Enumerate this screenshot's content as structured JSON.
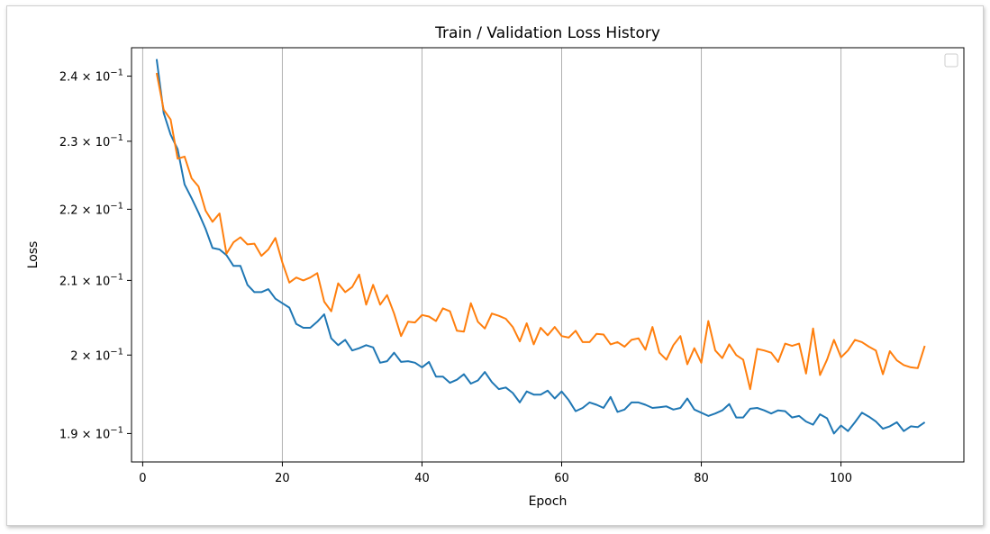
{
  "chart_data": {
    "type": "line",
    "title": "Train / Validation Loss History",
    "xlabel": "Epoch",
    "ylabel": "Loss",
    "xlim": [
      -1.6,
      117.6
    ],
    "ylim": [
      0.1865,
      0.2445
    ],
    "yscale": "log",
    "grid": "x-major-only",
    "legend": "top-right (empty)",
    "x_ticks": [
      0,
      20,
      40,
      60,
      80,
      100
    ],
    "x_tick_labels": [
      "0",
      "20",
      "40",
      "60",
      "80",
      "100"
    ],
    "y_ticks": [
      0.19,
      0.2,
      0.21,
      0.22,
      0.23,
      0.24
    ],
    "y_tick_labels": [
      {
        "mantissa": "1.9",
        "exp": "−1"
      },
      {
        "mantissa": "2",
        "exp": "−1"
      },
      {
        "mantissa": "2.1",
        "exp": "−1"
      },
      {
        "mantissa": "2.2",
        "exp": "−1"
      },
      {
        "mantissa": "2.3",
        "exp": "−1"
      },
      {
        "mantissa": "2.4",
        "exp": "−1"
      }
    ],
    "series": [
      {
        "color": "#1f77b4",
        "x": [
          2,
          3,
          4,
          5,
          6,
          7,
          8,
          9,
          10,
          11,
          12,
          13,
          14,
          15,
          16,
          17,
          18,
          19,
          20,
          21,
          22,
          23,
          24,
          25,
          26,
          27,
          28,
          29,
          30,
          31,
          32,
          33,
          34,
          35,
          36,
          37,
          38,
          39,
          40,
          41,
          42,
          43,
          44,
          45,
          46,
          47,
          48,
          49,
          50,
          51,
          52,
          53,
          54,
          55,
          56,
          57,
          58,
          59,
          60,
          61,
          62,
          63,
          64,
          65,
          66,
          67,
          68,
          69,
          70,
          71,
          72,
          73,
          74,
          75,
          76,
          77,
          78,
          79,
          80,
          81,
          82,
          83,
          84,
          85,
          86,
          87,
          88,
          89,
          90,
          91,
          92,
          93,
          94,
          95,
          96,
          97,
          98,
          99,
          100,
          101,
          102,
          103,
          104,
          105,
          106,
          107,
          108,
          109,
          110,
          111,
          112
        ],
        "values": [
          0.2427,
          0.2343,
          0.231,
          0.2288,
          0.2236,
          0.2216,
          0.2195,
          0.2172,
          0.2145,
          0.2143,
          0.2135,
          0.212,
          0.212,
          0.2094,
          0.2084,
          0.2084,
          0.2088,
          0.2075,
          0.2069,
          0.2063,
          0.2041,
          0.2036,
          0.2036,
          0.2044,
          0.2054,
          0.2022,
          0.2013,
          0.202,
          0.2006,
          0.2009,
          0.2013,
          0.201,
          0.199,
          0.1992,
          0.2003,
          0.1991,
          0.1992,
          0.199,
          0.1984,
          0.1991,
          0.1972,
          0.1972,
          0.1964,
          0.1968,
          0.1975,
          0.1963,
          0.1967,
          0.1978,
          0.1965,
          0.1956,
          0.1958,
          0.1951,
          0.1939,
          0.1953,
          0.1949,
          0.1949,
          0.1954,
          0.1944,
          0.1953,
          0.1942,
          0.1928,
          0.1932,
          0.1939,
          0.1936,
          0.1932,
          0.1946,
          0.1927,
          0.193,
          0.1939,
          0.1939,
          0.1936,
          0.1932,
          0.1933,
          0.1934,
          0.193,
          0.1932,
          0.1944,
          0.193,
          0.1926,
          0.1922,
          0.1925,
          0.1929,
          0.1937,
          0.192,
          0.192,
          0.1931,
          0.1932,
          0.1929,
          0.1925,
          0.1929,
          0.1928,
          0.192,
          0.1922,
          0.1915,
          0.1911,
          0.1924,
          0.1919,
          0.19,
          0.191,
          0.1903,
          0.1914,
          0.1926,
          0.1921,
          0.1915,
          0.1906,
          0.1909,
          0.1914,
          0.1903,
          0.1909,
          0.1908,
          0.1914
        ]
      },
      {
        "color": "#ff7f0e",
        "x": [
          2,
          3,
          4,
          5,
          6,
          7,
          8,
          9,
          10,
          11,
          12,
          13,
          14,
          15,
          16,
          17,
          18,
          19,
          20,
          21,
          22,
          23,
          24,
          25,
          26,
          27,
          28,
          29,
          30,
          31,
          32,
          33,
          34,
          35,
          36,
          37,
          38,
          39,
          40,
          41,
          42,
          43,
          44,
          45,
          46,
          47,
          48,
          49,
          50,
          51,
          52,
          53,
          54,
          55,
          56,
          57,
          58,
          59,
          60,
          61,
          62,
          63,
          64,
          65,
          66,
          67,
          68,
          69,
          70,
          71,
          72,
          73,
          74,
          75,
          76,
          77,
          78,
          79,
          80,
          81,
          82,
          83,
          84,
          85,
          86,
          87,
          88,
          89,
          90,
          91,
          92,
          93,
          94,
          95,
          96,
          97,
          98,
          99,
          100,
          101,
          102,
          103,
          104,
          105,
          106,
          107,
          108,
          109,
          110,
          111,
          112
        ],
        "values": [
          0.2405,
          0.2348,
          0.2333,
          0.2274,
          0.2277,
          0.2245,
          0.2233,
          0.2198,
          0.2182,
          0.2194,
          0.2137,
          0.2153,
          0.216,
          0.215,
          0.2151,
          0.2134,
          0.2143,
          0.2159,
          0.2125,
          0.2097,
          0.2104,
          0.21,
          0.2104,
          0.211,
          0.2071,
          0.2058,
          0.2096,
          0.2084,
          0.2091,
          0.2108,
          0.2067,
          0.2094,
          0.2067,
          0.208,
          0.2055,
          0.2025,
          0.2044,
          0.2043,
          0.2053,
          0.2051,
          0.2045,
          0.2062,
          0.2058,
          0.2032,
          0.2031,
          0.2069,
          0.2044,
          0.2035,
          0.2055,
          0.2052,
          0.2048,
          0.2037,
          0.2018,
          0.2042,
          0.2014,
          0.2036,
          0.2026,
          0.2037,
          0.2025,
          0.2023,
          0.2032,
          0.2017,
          0.2017,
          0.2028,
          0.2027,
          0.2014,
          0.2017,
          0.2011,
          0.202,
          0.2022,
          0.2007,
          0.2037,
          0.2003,
          0.1994,
          0.2013,
          0.2025,
          0.1988,
          0.2009,
          0.199,
          0.2045,
          0.2006,
          0.1996,
          0.2014,
          0.2,
          0.1994,
          0.1956,
          0.2008,
          0.2006,
          0.2003,
          0.1991,
          0.2015,
          0.2012,
          0.2015,
          0.1976,
          0.2035,
          0.1974,
          0.1994,
          0.202,
          0.1997,
          0.2006,
          0.202,
          0.2017,
          0.2011,
          0.2006,
          0.1975,
          0.2005,
          0.1993,
          0.1987,
          0.1984,
          0.1983,
          0.2012
        ]
      }
    ]
  }
}
